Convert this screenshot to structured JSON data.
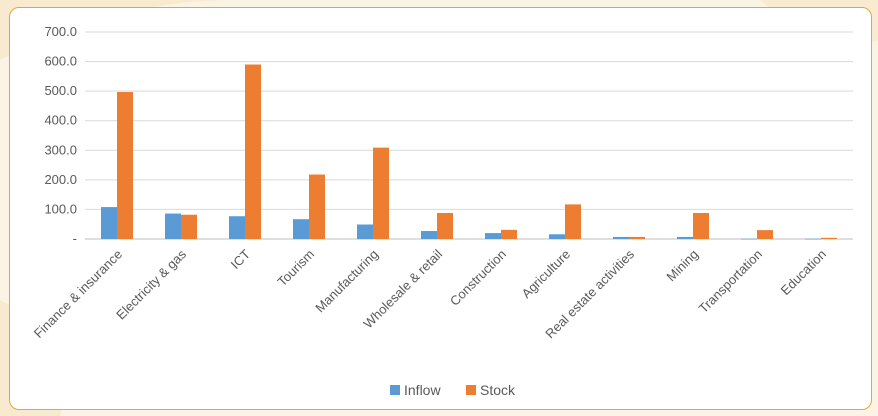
{
  "chart_data": {
    "type": "bar",
    "categories": [
      "Finance & insurance",
      "Electricity & gas",
      "ICT",
      "Tourism",
      "Manufacturing",
      "Wholesale & retail",
      "Construction",
      "Agriculture",
      "Real estate activities",
      "Mining",
      "Transportation",
      "Education"
    ],
    "series": [
      {
        "name": "Inflow",
        "values": [
          108,
          86,
          77,
          67,
          49,
          27,
          20,
          16,
          7,
          7,
          1,
          1
        ],
        "color": "#5b9bd5"
      },
      {
        "name": "Stock",
        "values": [
          497,
          82,
          590,
          218,
          309,
          88,
          31,
          117,
          7,
          88,
          30,
          4
        ],
        "color": "#ed7d31"
      }
    ],
    "y_ticks": [
      "-",
      "100.0",
      "200.0",
      "300.0",
      "400.0",
      "500.0",
      "600.0",
      "700.0"
    ],
    "ylim": [
      0,
      700
    ],
    "grid": true,
    "legend_position": "bottom"
  }
}
